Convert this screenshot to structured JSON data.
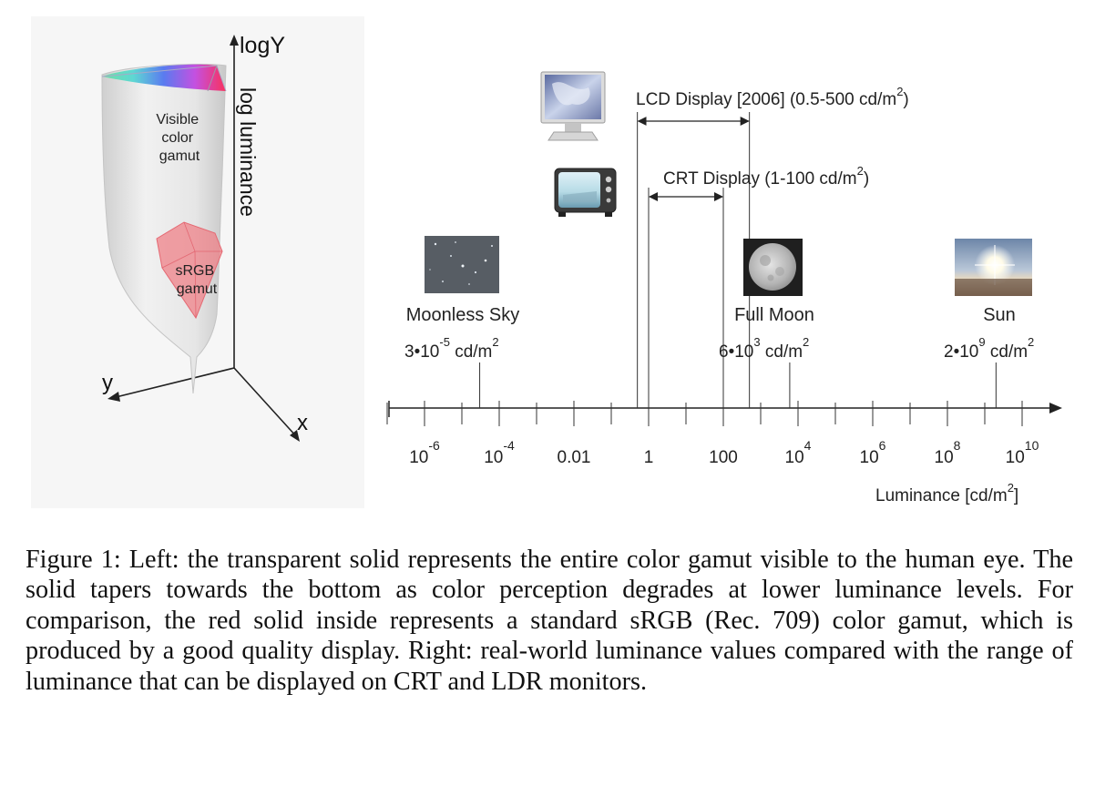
{
  "left_panel": {
    "axis_log_y": "logY",
    "axis_log_luminance": "log luminance",
    "axis_y": "y",
    "axis_x": "x",
    "visible_gamut_lines": [
      "Visible",
      "color",
      "gamut"
    ],
    "srgb_gamut_lines": [
      "sRGB",
      "gamut"
    ]
  },
  "right_panel": {
    "lcd_label": {
      "text": "LCD Display [2006] (0.5-500 cd/m",
      "sup": "2",
      "tail": ")"
    },
    "crt_label": {
      "text": "CRT Display (1-100 cd/m",
      "sup": "2",
      "tail": ")"
    },
    "moonless_sky": {
      "name": "Moonless Sky",
      "value_pre": "3•10",
      "value_exp": "-5",
      "unit": " cd/m",
      "unit_exp": "2"
    },
    "full_moon": {
      "name": "Full Moon",
      "value_pre": "6•10",
      "value_exp": "3",
      "unit": " cd/m",
      "unit_exp": "2"
    },
    "sun": {
      "name": "Sun",
      "value_pre": "2•10",
      "value_exp": "9",
      "unit": " cd/m",
      "unit_exp": "2"
    },
    "axis_title": {
      "text": "Luminance [cd/m",
      "sup": "2",
      "tail": "]"
    }
  },
  "chart_data": {
    "type": "scatter",
    "xlabel": "Luminance [cd/m2]",
    "log_scale": true,
    "xlim_log10": [
      -7,
      10.5
    ],
    "tick_labels": [
      {
        "log10": -6,
        "base": "10",
        "exp": "-6"
      },
      {
        "log10": -4,
        "base": "10",
        "exp": "-4"
      },
      {
        "log10": -2,
        "base": "0.01",
        "exp": ""
      },
      {
        "log10": 0,
        "base": "1",
        "exp": ""
      },
      {
        "log10": 2,
        "base": "100",
        "exp": ""
      },
      {
        "log10": 4,
        "base": "10",
        "exp": "4"
      },
      {
        "log10": 6,
        "base": "10",
        "exp": "6"
      },
      {
        "log10": 8,
        "base": "10",
        "exp": "8"
      },
      {
        "log10": 10,
        "base": "10",
        "exp": "10"
      }
    ],
    "points": [
      {
        "name": "Moonless Sky",
        "value": 3e-05
      },
      {
        "name": "Full Moon",
        "value": 6000
      },
      {
        "name": "Sun",
        "value": 2000000000
      }
    ],
    "ranges": [
      {
        "name": "LCD Display [2006]",
        "min": 0.5,
        "max": 500
      },
      {
        "name": "CRT Display",
        "min": 1,
        "max": 100
      }
    ]
  },
  "caption": "Figure 1: Left: the transparent solid represents the entire color gamut visible to the human eye. The solid tapers towards the bottom as color perception degrades at lower luminance levels. For comparison, the red solid inside represents a standard sRGB (Rec. 709) color gamut, which is produced by a good quality display. Right: real-world luminance values compared with the range of luminance that can be displayed on CRT and LDR monitors."
}
